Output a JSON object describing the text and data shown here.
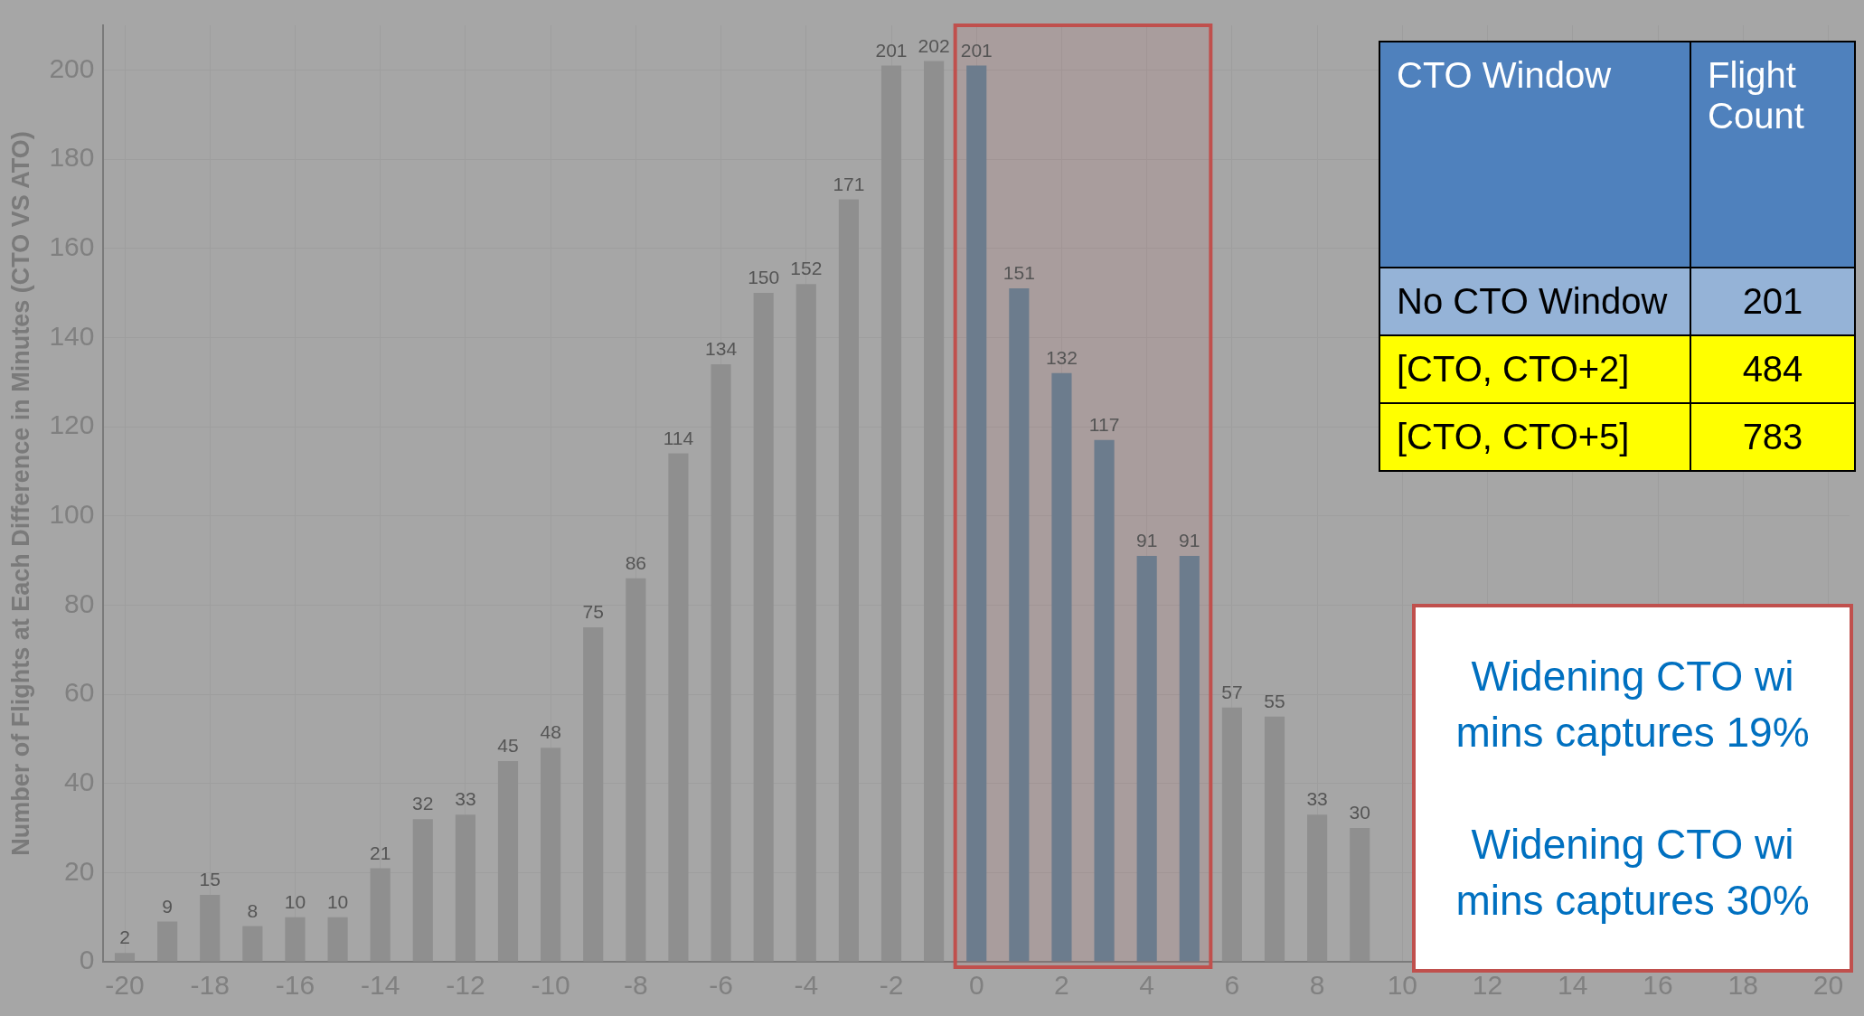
{
  "chart_data": [
    {
      "type": "bar",
      "ylabel": "Number of Flights at Each Difference in Minutes (CTO VS ATO)",
      "x": [
        -20,
        -19,
        -18,
        -17,
        -16,
        -15,
        -14,
        -13,
        -12,
        -11,
        -10,
        -9,
        -8,
        -7,
        -6,
        -5,
        -4,
        -3,
        -2,
        -1,
        0,
        1,
        2,
        3,
        4,
        5,
        6,
        7,
        8,
        9
      ],
      "values": [
        2,
        9,
        15,
        8,
        10,
        10,
        21,
        32,
        33,
        45,
        48,
        75,
        86,
        114,
        134,
        150,
        152,
        171,
        201,
        202,
        201,
        151,
        132,
        117,
        91,
        91,
        57,
        55,
        33,
        30
      ],
      "colors": [
        "#8f8f8f",
        "#8f8f8f",
        "#8f8f8f",
        "#8f8f8f",
        "#8f8f8f",
        "#8f8f8f",
        "#8f8f8f",
        "#8f8f8f",
        "#8f8f8f",
        "#8f8f8f",
        "#8f8f8f",
        "#8f8f8f",
        "#8f8f8f",
        "#8f8f8f",
        "#8f8f8f",
        "#8f8f8f",
        "#8f8f8f",
        "#8f8f8f",
        "#8f8f8f",
        "#8f8f8f",
        "#6c7c8d",
        "#6c7c8d",
        "#6c7c8d",
        "#6c7c8d",
        "#6c7c8d",
        "#6c7c8d",
        "#8f8f8f",
        "#8f8f8f",
        "#8f8f8f",
        "#8f8f8f"
      ],
      "xlim": [
        -20.5,
        20.5
      ],
      "xticks": [
        -20,
        -18,
        -16,
        -14,
        -12,
        -10,
        -8,
        -6,
        -4,
        -2,
        0,
        2,
        4,
        6,
        8,
        10,
        12,
        14,
        16,
        18,
        20
      ],
      "ylim": [
        0,
        210
      ],
      "yticks": [
        0,
        20,
        40,
        60,
        80,
        100,
        120,
        140,
        160,
        180,
        200
      ],
      "grid": true,
      "data_labels": true,
      "bands": [
        {
          "axis": "x",
          "from": -0.5,
          "to": 5.5,
          "color": "#c0504d"
        }
      ],
      "annotations": [
        "Widening CTO wi\nmins captures 19%",
        "Widening CTO wi\nmins captures 30%"
      ]
    },
    {
      "type": "other",
      "xlabel": "CTO Window",
      "ylabel": "Flight Count",
      "categories": [
        "No CTO Window",
        "[CTO, CTO+2]",
        "[CTO, CTO+5]"
      ],
      "values": [
        201,
        484,
        783
      ],
      "colors": [
        "#95b3d7",
        "#ffff00",
        "#ffff00"
      ],
      "data_labels": true
    }
  ]
}
